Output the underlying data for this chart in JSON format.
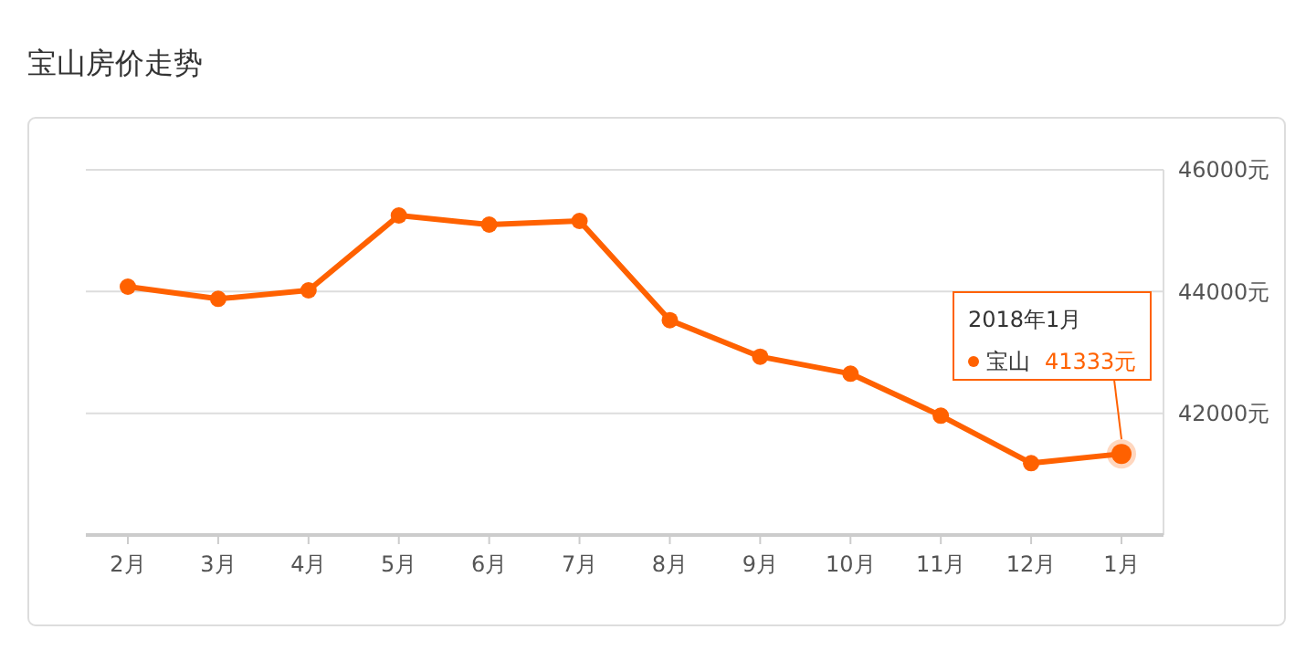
{
  "chart_data": {
    "type": "line",
    "title": "宝山房价走势",
    "categories": [
      "2月",
      "3月",
      "4月",
      "5月",
      "6月",
      "7月",
      "8月",
      "9月",
      "10月",
      "11月",
      "12月",
      "1月"
    ],
    "series": [
      {
        "name": "宝山",
        "color": "#ff6100",
        "values": [
          44080,
          43880,
          44020,
          45250,
          45100,
          45160,
          43530,
          42930,
          42650,
          41960,
          41180,
          41333
        ],
        "value_labels": [
          null,
          null,
          null,
          null,
          null,
          null,
          null,
          null,
          null,
          null,
          null,
          "41333元"
        ]
      }
    ],
    "annotations": [
      "2018年1月"
    ],
    "ylim": [
      40000,
      46000
    ],
    "yticks": [
      {
        "value": 42000,
        "label": "42000元"
      },
      {
        "value": 44000,
        "label": "44000元"
      },
      {
        "value": 46000,
        "label": "46000元"
      }
    ],
    "grid": "y",
    "legend": "right",
    "marker": "circle",
    "line_style": "solid"
  }
}
